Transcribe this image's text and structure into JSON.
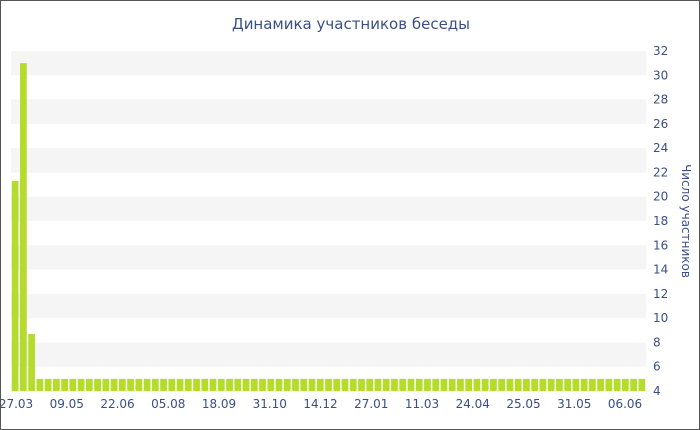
{
  "chart_data": {
    "type": "bar",
    "title": "Динамика участников беседы",
    "xlabel": "",
    "ylabel": "Число участников",
    "ylim": [
      4,
      32
    ],
    "y_ticks": [
      4,
      6,
      8,
      10,
      12,
      14,
      16,
      18,
      20,
      22,
      24,
      26,
      28,
      30,
      32
    ],
    "y_axis_side": "right",
    "x_tick_labels": [
      "27.03",
      "09.05",
      "22.06",
      "05.08",
      "18.09",
      "31.10",
      "14.12",
      "27.01",
      "11.03",
      "24.04",
      "25.05",
      "31.05",
      "06.06"
    ],
    "grid": "horizontal bands",
    "legend": "none",
    "values": [
      21.3,
      31.0,
      8.7,
      5,
      5,
      5,
      5,
      5,
      5,
      5,
      5,
      5,
      5,
      5,
      5,
      5,
      5,
      5,
      5,
      5,
      5,
      5,
      5,
      5,
      5,
      5,
      5,
      5,
      5,
      5,
      5,
      5,
      5,
      5,
      5,
      5,
      5,
      5,
      5,
      5,
      5,
      5,
      5,
      5,
      5,
      5,
      5,
      5,
      5,
      5,
      5,
      5,
      5,
      5,
      5,
      5,
      5,
      5,
      5,
      5,
      5,
      5,
      5,
      5,
      5,
      5,
      5,
      5,
      5,
      5,
      5,
      5,
      5,
      5,
      5,
      5,
      5
    ],
    "bar_color": "#b5dc2c",
    "band_color": "#f5f5f5",
    "text_color": "#3a4f86"
  }
}
